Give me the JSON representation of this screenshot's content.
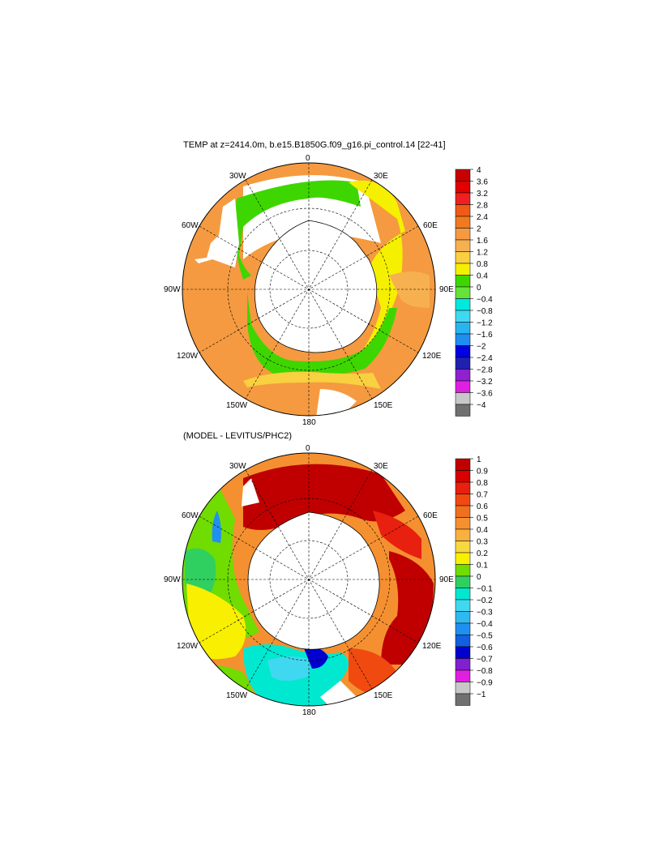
{
  "panels": [
    {
      "title": "TEMP at z=2414.0m, b.e15.B1850G.f09_g16.pi_control.14 [22-41]",
      "lon_labels": {
        "n": "0",
        "ne": "30E",
        "ene": "60E",
        "e": "90E",
        "ese": "120E",
        "sse": "150E",
        "s": "180",
        "ssw": "150W",
        "wsw": "120W",
        "w": "90W",
        "wnw": "60W",
        "nnw": "30W"
      },
      "colorbar": {
        "labels": [
          "4",
          "3.6",
          "3.2",
          "2.8",
          "2.4",
          "2",
          "1.6",
          "1.2",
          "0.8",
          "0.4",
          "0",
          "−0.4",
          "−0.8",
          "−1.2",
          "−1.6",
          "−2",
          "−2.4",
          "−2.8",
          "−3.2",
          "−3.6",
          "−4"
        ],
        "colors": [
          "#c80000",
          "#e00000",
          "#f02020",
          "#f05a14",
          "#f07a20",
          "#f59a40",
          "#f7b050",
          "#f8d040",
          "#f5f000",
          "#3ed600",
          "#66e23a",
          "#00e8e0",
          "#40d8f0",
          "#28b4ee",
          "#1e8ef0",
          "#0000e0",
          "#2020b0",
          "#9020d0",
          "#e020e0",
          "#c8c8c8",
          "#707070"
        ]
      }
    },
    {
      "title": "(MODEL - LEVITUS/PHC2)",
      "lon_labels": {
        "n": "0",
        "ne": "30E",
        "ene": "60E",
        "e": "90E",
        "ese": "120E",
        "sse": "150E",
        "s": "180",
        "ssw": "150W",
        "wsw": "120W",
        "w": "90W",
        "wnw": "60W",
        "nnw": "30W"
      },
      "colorbar": {
        "labels": [
          "1",
          "0.9",
          "0.8",
          "0.7",
          "0.6",
          "0.5",
          "0.4",
          "0.3",
          "0.2",
          "0.1",
          "0",
          "−0.1",
          "−0.2",
          "−0.3",
          "−0.4",
          "−0.5",
          "−0.6",
          "−0.7",
          "−0.8",
          "−0.9",
          "−1"
        ],
        "colors": [
          "#c00000",
          "#d80000",
          "#e82010",
          "#f04a10",
          "#f07020",
          "#f59030",
          "#f8b040",
          "#f8d840",
          "#f8f000",
          "#70dc00",
          "#30d060",
          "#00e8d0",
          "#40d8f0",
          "#30b8f0",
          "#2090f0",
          "#1060e0",
          "#0000d0",
          "#8020d0",
          "#e020e0",
          "#c8c8c8",
          "#707070"
        ]
      }
    }
  ]
}
